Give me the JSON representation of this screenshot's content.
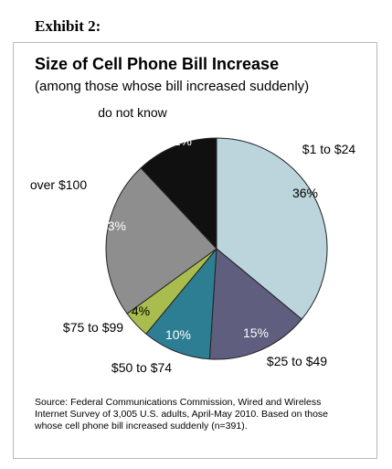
{
  "exhibit_label": "Exhibit 2:",
  "chart_data": {
    "type": "pie",
    "title": "Size of Cell Phone Bill Increase",
    "subtitle": "(among those whose bill increased suddenly)",
    "slices": [
      {
        "label": "$1 to $24",
        "value": 36,
        "value_label": "36%",
        "color": "#bcd5dc"
      },
      {
        "label": "$25 to $49",
        "value": 15,
        "value_label": "15%",
        "color": "#5f5e7f"
      },
      {
        "label": "$50 to $74",
        "value": 10,
        "value_label": "10%",
        "color": "#2e7e93"
      },
      {
        "label": "$75 to $99",
        "value": 4,
        "value_label": "4%",
        "color": "#a8bd4d"
      },
      {
        "label": "over $100",
        "value": 23,
        "value_label": "23%",
        "color": "#8e8e8e"
      },
      {
        "label": "do not know",
        "value": 12,
        "value_label": "12%",
        "color": "#101010"
      }
    ],
    "start": "top",
    "direction": "clockwise"
  },
  "source_note": "Source: Federal Communications Commission, Wired and Wireless Internet Survey of 3,005 U.S. adults, April-May 2010. Based on those whose cell phone bill increased suddenly (n=391)."
}
